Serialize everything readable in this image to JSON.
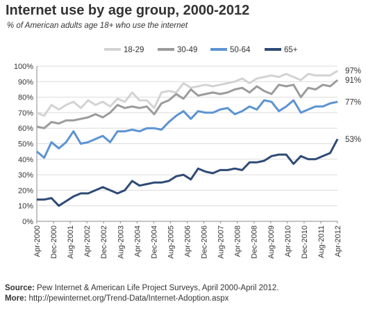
{
  "chart_data": {
    "type": "line",
    "title": "Internet use by age group, 2000-2012",
    "subtitle": "% of American adults age 18+ who use the internet",
    "ylim": [
      0,
      100
    ],
    "y_ticks": [
      "0%",
      "10%",
      "20%",
      "30%",
      "40%",
      "50%",
      "60%",
      "70%",
      "80%",
      "90%",
      "100%"
    ],
    "x_ticks": [
      "Apr-2000",
      "Dec-2000",
      "Aug-2001",
      "Apr-2002",
      "Dec-2002",
      "Aug-2003",
      "Apr-2004",
      "Dec-2004",
      "Aug-2005",
      "Apr-2006",
      "Dec-2006",
      "Aug-2007",
      "Apr-2008",
      "Dec-2008",
      "Aug-2009",
      "Apr-2010",
      "Dec-2010",
      "Aug-2011",
      "Apr-2012"
    ],
    "legend_position": "top",
    "grid": true,
    "series": [
      {
        "name": "18-29",
        "color": "#d3d3d3",
        "end_label": "97%",
        "values": [
          70,
          68,
          75,
          72,
          75,
          77,
          73,
          78,
          75,
          77,
          74,
          79,
          77,
          83,
          78,
          78,
          73,
          83,
          84,
          83,
          89,
          86,
          87,
          88,
          87,
          88,
          89,
          90,
          92,
          89,
          92,
          93,
          94,
          93,
          95,
          93,
          91,
          95,
          94,
          94,
          94,
          97
        ]
      },
      {
        "name": "30-49",
        "color": "#9b9b9b",
        "end_label": "91%",
        "values": [
          61,
          60,
          64,
          63,
          65,
          65,
          66,
          67,
          69,
          67,
          70,
          75,
          73,
          74,
          73,
          74,
          69,
          76,
          78,
          82,
          79,
          85,
          81,
          82,
          83,
          82,
          83,
          85,
          86,
          83,
          87,
          84,
          82,
          88,
          87,
          88,
          80,
          86,
          85,
          88,
          87,
          91
        ]
      },
      {
        "name": "50-64",
        "color": "#5b93d3",
        "end_label": "77%",
        "values": [
          45,
          41,
          51,
          47,
          51,
          58,
          50,
          51,
          53,
          55,
          51,
          58,
          58,
          59,
          58,
          60,
          60,
          59,
          64,
          68,
          71,
          66,
          71,
          70,
          70,
          72,
          73,
          69,
          71,
          74,
          72,
          78,
          77,
          71,
          74,
          78,
          70,
          72,
          74,
          74,
          76,
          77
        ]
      },
      {
        "name": "65+",
        "color": "#2f4a75",
        "end_label": "53%",
        "values": [
          14,
          14,
          15,
          10,
          13,
          16,
          18,
          18,
          20,
          22,
          20,
          18,
          20,
          26,
          23,
          24,
          25,
          25,
          26,
          29,
          30,
          27,
          34,
          32,
          31,
          33,
          33,
          34,
          33,
          38,
          38,
          39,
          42,
          43,
          43,
          37,
          42,
          40,
          40,
          42,
          44,
          53
        ]
      }
    ]
  },
  "footer": {
    "source_label": "Source:",
    "source_text": " Pew Internet & American Life Project Surveys, April 2000-April 2012.",
    "more_label": "More:",
    "more_text": " http://pewinternet.org/Trend-Data/Internet-Adoption.aspx"
  }
}
